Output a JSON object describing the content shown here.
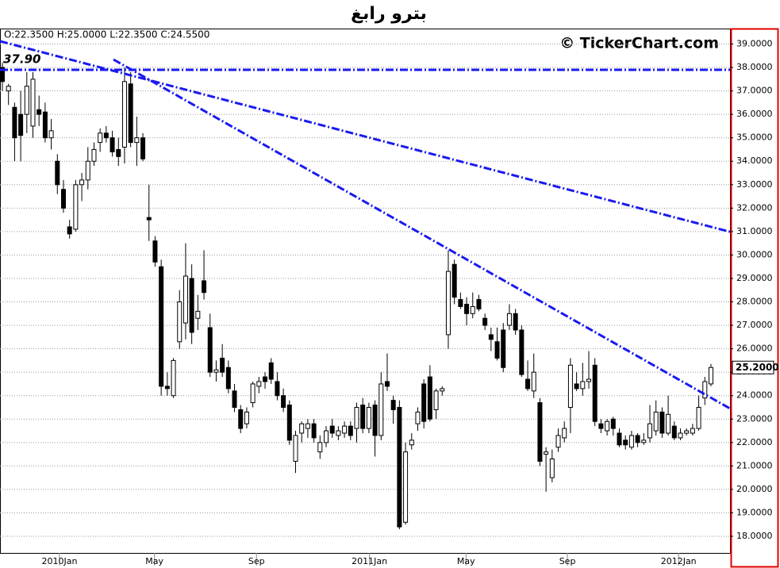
{
  "chart_data": {
    "type": "candlestick",
    "title": "بترو رابغ",
    "info": "O:22.3500 H:25.0000 L:22.3500 C:24.5500",
    "watermark": "© TickerChart.com",
    "xlim": [
      -0.39,
      119.12
    ],
    "ylim": [
      17.29,
      39.66
    ],
    "xticks": [
      {
        "value": 9.35,
        "label": "2010Jan"
      },
      {
        "value": 24.9,
        "label": "May"
      },
      {
        "value": 41.6,
        "label": "Sep"
      },
      {
        "value": 60.1,
        "label": "2011Jan"
      },
      {
        "value": 75.9,
        "label": "May"
      },
      {
        "value": 92.5,
        "label": "Sep"
      },
      {
        "value": 110.7,
        "label": "2012Jan"
      }
    ],
    "yticks": [
      {
        "value": 18,
        "label": "18.0000"
      },
      {
        "value": 19,
        "label": "19.0000"
      },
      {
        "value": 20,
        "label": "20.0000"
      },
      {
        "value": 21,
        "label": "21.0000"
      },
      {
        "value": 22,
        "label": "22.0000"
      },
      {
        "value": 23,
        "label": "23.0000"
      },
      {
        "value": 24,
        "label": "24.0000"
      },
      {
        "value": 25,
        "label": "25.0000"
      },
      {
        "value": 26,
        "label": "26.0000"
      },
      {
        "value": 27,
        "label": "27.0000"
      },
      {
        "value": 28,
        "label": "28.0000"
      },
      {
        "value": 29,
        "label": "29.0000"
      },
      {
        "value": 30,
        "label": "30.0000"
      },
      {
        "value": 31,
        "label": "31.0000"
      },
      {
        "value": 32,
        "label": "32.0000"
      },
      {
        "value": 33,
        "label": "33.0000"
      },
      {
        "value": 34,
        "label": "34.0000"
      },
      {
        "value": 35,
        "label": "35.0000"
      },
      {
        "value": 36,
        "label": "36.0000"
      },
      {
        "value": 37,
        "label": "37.0000"
      },
      {
        "value": 38,
        "label": "38.0000"
      },
      {
        "value": 39,
        "label": "39.0000"
      }
    ],
    "grid": true,
    "up_color": "#ffffff",
    "down_color": "#000000",
    "line_color": "#1a1aee",
    "last_price": {
      "value": 25.2,
      "label": "25.2000"
    },
    "level": {
      "value": 37.9,
      "label": "37.90",
      "color": "#e00000"
    },
    "trendlines": [
      {
        "x": [
          -0.39,
          119.12
        ],
        "y": [
          39.12,
          30.99
        ]
      },
      {
        "x": [
          18.19,
          119.12
        ],
        "y": [
          38.34,
          23.45
        ]
      }
    ],
    "x": [
      0,
      1,
      2,
      3,
      4,
      5,
      6,
      7,
      8,
      9,
      10,
      11,
      12,
      13,
      14,
      15,
      16,
      17,
      18,
      19,
      20,
      21,
      22,
      23,
      24,
      25,
      26,
      27,
      28,
      29,
      30,
      31,
      32,
      33,
      34,
      35,
      36,
      37,
      38,
      39,
      40,
      41,
      42,
      43,
      44,
      45,
      46,
      47,
      48,
      49,
      50,
      51,
      52,
      53,
      54,
      55,
      56,
      57,
      58,
      59,
      60,
      61,
      62,
      63,
      64,
      65,
      66,
      67,
      68,
      69,
      70,
      71,
      72,
      73,
      74,
      75,
      76,
      77,
      78,
      79,
      80,
      81,
      82,
      83,
      84,
      85,
      86,
      87,
      88,
      89,
      90,
      91,
      92,
      93,
      94,
      95,
      96,
      97,
      98,
      99,
      100,
      101,
      102,
      103,
      104,
      105,
      106,
      107,
      108,
      109,
      110,
      111,
      112,
      113,
      114,
      115,
      116
    ],
    "candles": [
      [
        38.0,
        38.2,
        37.0,
        37.4
      ],
      [
        37.0,
        37.3,
        36.4,
        37.2
      ],
      [
        36.3,
        36.5,
        34.0,
        35.0
      ],
      [
        36.0,
        37.0,
        34.0,
        35.1
      ],
      [
        36.0,
        37.8,
        35.2,
        37.2
      ],
      [
        35.5,
        37.8,
        35.0,
        37.5
      ],
      [
        36.2,
        36.8,
        35.5,
        36.0
      ],
      [
        36.1,
        36.5,
        34.8,
        35.0
      ],
      [
        35.0,
        35.8,
        34.5,
        35.3
      ],
      [
        34.0,
        34.3,
        32.6,
        33.0
      ],
      [
        32.8,
        33.2,
        31.8,
        32.0
      ],
      [
        31.2,
        31.5,
        30.7,
        30.9
      ],
      [
        31.1,
        33.2,
        31.0,
        33.0
      ],
      [
        33.0,
        33.5,
        32.3,
        33.2
      ],
      [
        33.2,
        34.6,
        32.8,
        34.0
      ],
      [
        34.0,
        34.8,
        33.8,
        34.5
      ],
      [
        34.8,
        35.4,
        34.4,
        35.2
      ],
      [
        35.2,
        35.5,
        34.8,
        35.0
      ],
      [
        35.0,
        35.3,
        34.2,
        34.4
      ],
      [
        34.5,
        35.0,
        33.8,
        34.2
      ],
      [
        34.6,
        38.0,
        33.9,
        37.4
      ],
      [
        37.3,
        37.8,
        34.6,
        34.8
      ],
      [
        34.8,
        35.9,
        33.8,
        35.0
      ],
      [
        35.0,
        35.2,
        34.0,
        34.1
      ],
      [
        31.6,
        33.0,
        30.6,
        31.5
      ],
      [
        30.6,
        30.8,
        29.5,
        29.7
      ],
      [
        29.5,
        29.8,
        24.0,
        24.4
      ],
      [
        24.4,
        25.0,
        24.0,
        24.3
      ],
      [
        24.0,
        25.6,
        23.9,
        25.5
      ],
      [
        26.3,
        28.5,
        26.0,
        28.0
      ],
      [
        27.1,
        30.5,
        26.4,
        29.1
      ],
      [
        29.0,
        29.6,
        26.2,
        26.7
      ],
      [
        27.3,
        28.3,
        26.8,
        27.6
      ],
      [
        28.9,
        30.2,
        28.1,
        28.4
      ],
      [
        26.9,
        27.5,
        24.8,
        25.0
      ],
      [
        25.0,
        25.5,
        24.6,
        25.1
      ],
      [
        25.6,
        26.2,
        24.8,
        25.0
      ],
      [
        25.2,
        25.5,
        24.1,
        24.3
      ],
      [
        24.2,
        24.5,
        23.3,
        23.5
      ],
      [
        23.4,
        23.6,
        22.4,
        22.6
      ],
      [
        22.8,
        23.5,
        22.6,
        23.3
      ],
      [
        23.7,
        24.6,
        23.5,
        24.5
      ],
      [
        24.4,
        24.8,
        24.1,
        24.6
      ],
      [
        24.8,
        25.0,
        24.3,
        24.6
      ],
      [
        25.4,
        25.6,
        24.5,
        24.7
      ],
      [
        24.6,
        25.0,
        23.8,
        24.0
      ],
      [
        24.0,
        24.3,
        23.3,
        23.5
      ],
      [
        23.6,
        23.8,
        21.9,
        22.1
      ],
      [
        21.2,
        22.5,
        20.7,
        22.3
      ],
      [
        22.4,
        22.9,
        22.0,
        22.8
      ],
      [
        22.6,
        23.0,
        22.2,
        22.8
      ],
      [
        22.8,
        23.0,
        22.0,
        22.2
      ],
      [
        21.6,
        22.3,
        21.3,
        22.0
      ],
      [
        22.0,
        22.7,
        21.8,
        22.5
      ],
      [
        22.7,
        23.0,
        22.2,
        22.4
      ],
      [
        22.3,
        22.7,
        22.1,
        22.5
      ],
      [
        22.4,
        22.9,
        22.2,
        22.7
      ],
      [
        22.7,
        22.9,
        22.1,
        22.3
      ],
      [
        22.6,
        23.7,
        22.0,
        23.5
      ],
      [
        23.6,
        23.9,
        22.4,
        22.6
      ],
      [
        22.6,
        23.7,
        22.4,
        23.5
      ],
      [
        23.6,
        23.8,
        21.4,
        22.3
      ],
      [
        22.3,
        25.0,
        22.1,
        24.5
      ],
      [
        24.6,
        25.8,
        24.2,
        24.4
      ],
      [
        23.8,
        24.0,
        22.8,
        23.4
      ],
      [
        23.5,
        23.8,
        18.3,
        18.4
      ],
      [
        18.6,
        22.0,
        18.5,
        21.6
      ],
      [
        21.9,
        22.4,
        21.7,
        22.1
      ],
      [
        22.8,
        23.5,
        22.5,
        23.3
      ],
      [
        24.5,
        24.7,
        22.6,
        22.9
      ],
      [
        24.8,
        25.3,
        22.9,
        23.0
      ],
      [
        23.4,
        24.3,
        23.0,
        24.2
      ],
      [
        24.2,
        24.4,
        24.0,
        24.3
      ],
      [
        26.6,
        30.2,
        26.0,
        29.3
      ],
      [
        29.6,
        29.8,
        27.9,
        28.2
      ],
      [
        28.1,
        28.4,
        27.7,
        27.8
      ],
      [
        27.9,
        28.2,
        27.0,
        27.5
      ],
      [
        27.5,
        28.4,
        27.3,
        27.8
      ],
      [
        28.1,
        28.3,
        27.6,
        27.7
      ],
      [
        27.3,
        27.5,
        26.8,
        27.0
      ],
      [
        26.6,
        26.9,
        25.9,
        26.4
      ],
      [
        26.3,
        26.9,
        25.5,
        25.6
      ],
      [
        26.8,
        27.1,
        25.0,
        25.2
      ],
      [
        27.0,
        27.9,
        26.8,
        27.5
      ],
      [
        27.5,
        27.7,
        26.6,
        26.8
      ],
      [
        26.8,
        27.0,
        24.8,
        24.9
      ],
      [
        24.7,
        25.5,
        24.2,
        24.3
      ],
      [
        24.2,
        25.8,
        23.9,
        25.0
      ],
      [
        23.7,
        23.9,
        21.0,
        21.2
      ],
      [
        21.5,
        21.8,
        19.9,
        21.6
      ],
      [
        20.5,
        21.7,
        20.3,
        21.3
      ],
      [
        21.8,
        22.6,
        21.6,
        22.3
      ],
      [
        22.2,
        22.9,
        22.0,
        22.6
      ],
      [
        23.5,
        25.6,
        22.4,
        25.3
      ],
      [
        24.5,
        25.0,
        24.2,
        24.3
      ],
      [
        24.3,
        25.4,
        24.0,
        24.6
      ],
      [
        24.6,
        25.9,
        24.3,
        24.7
      ],
      [
        25.3,
        25.6,
        22.7,
        22.9
      ],
      [
        22.8,
        23.0,
        22.4,
        22.6
      ],
      [
        22.5,
        23.0,
        22.3,
        22.9
      ],
      [
        23.0,
        23.1,
        22.3,
        22.6
      ],
      [
        22.4,
        22.6,
        21.8,
        21.9
      ],
      [
        22.1,
        22.3,
        21.7,
        21.9
      ],
      [
        21.8,
        22.5,
        21.7,
        22.3
      ],
      [
        22.3,
        22.4,
        21.8,
        22.0
      ],
      [
        22.0,
        22.4,
        21.9,
        22.1
      ],
      [
        22.2,
        23.6,
        22.0,
        22.8
      ],
      [
        22.5,
        23.8,
        22.3,
        23.3
      ],
      [
        23.3,
        23.5,
        22.2,
        22.4
      ],
      [
        22.4,
        24.0,
        22.3,
        23.2
      ],
      [
        22.7,
        22.9,
        22.1,
        22.2
      ],
      [
        22.2,
        22.6,
        22.1,
        22.4
      ],
      [
        22.4,
        22.6,
        22.3,
        22.5
      ],
      [
        22.4,
        22.8,
        22.3,
        22.6
      ],
      [
        22.6,
        24.0,
        22.5,
        23.5
      ],
      [
        23.9,
        24.8,
        23.6,
        24.6
      ],
      [
        24.5,
        25.35,
        24.4,
        25.2
      ]
    ]
  }
}
